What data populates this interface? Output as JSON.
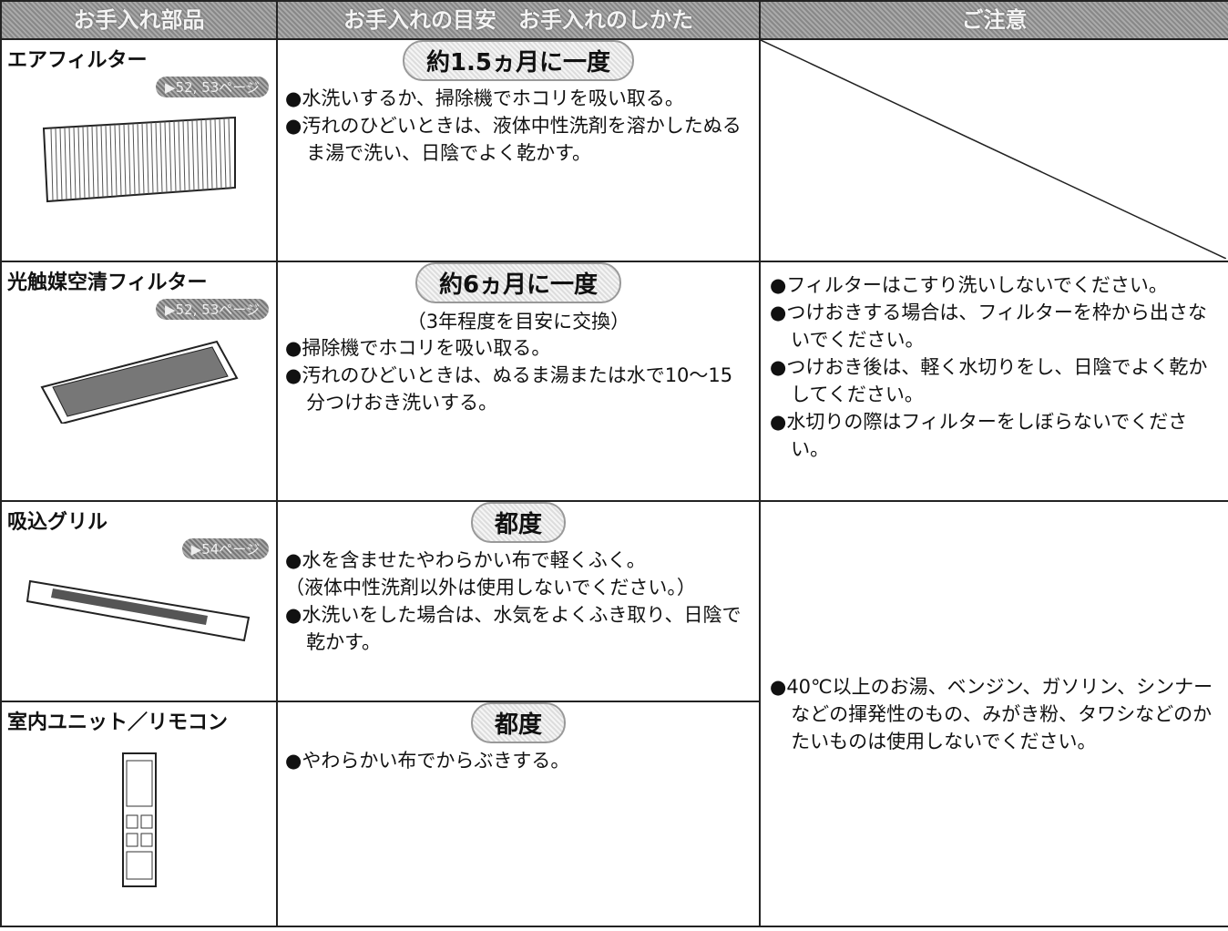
{
  "header": {
    "columns": [
      "お手入れ部品",
      "お手入れの目安　お手入れのしかた",
      "ご注意"
    ]
  },
  "rows": [
    {
      "part": "エアフィルター",
      "page": "▶52, 53ページ",
      "interval": "約1.5ヵ月に一度",
      "instructions": [
        "●水洗いするか、掃除機でホコリを吸い取る。",
        "●汚れのひどいときは、液体中性洗剤を溶かしたぬるま湯で洗い、日陰でよく乾かす。"
      ]
    },
    {
      "part": "光触媒空清フィルター",
      "page": "▶52, 53ページ",
      "interval": "約6ヵ月に一度",
      "interval_note": "（3年程度を目安に交換）",
      "instructions": [
        "●掃除機でホコリを吸い取る。",
        "●汚れのひどいときは、ぬるま湯または水で10～15分つけおき洗いする。"
      ],
      "cautions": [
        "●フィルターはこすり洗いしないでください。",
        "●つけおきする場合は、フィルターを枠から出さないでください。",
        "●つけおき後は、軽く水切りをし、日陰でよく乾かしてください。",
        "●水切りの際はフィルターをしぼらないでください。"
      ]
    },
    {
      "part": "吸込グリル",
      "page": "▶54ページ",
      "interval": "都度",
      "instructions": [
        "●水を含ませたやわらかい布で軽くふく。",
        "（液体中性洗剤以外は使用しないでください。）",
        "●水洗いをした場合は、水気をよくふき取り、日陰で乾かす。"
      ],
      "cautions": [
        "●40℃以上のお湯、ベンジン、ガソリン、シンナーなどの揮発性のもの、みがき粉、タワシなどのかたいものは使用しないでください。"
      ]
    },
    {
      "part": "室内ユニット／リモコン",
      "interval": "都度",
      "instructions": [
        "●やわらかい布でからぶきする。"
      ]
    }
  ]
}
